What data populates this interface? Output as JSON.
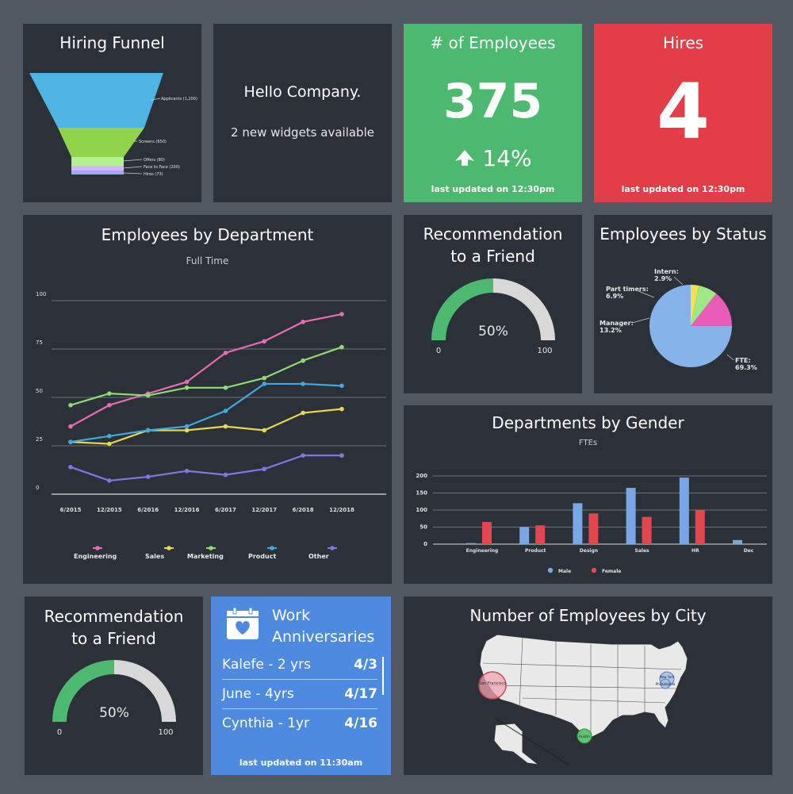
{
  "hiring_funnel": {
    "title": "Hiring Funnel",
    "stages": [
      {
        "label": "Applicants (1,200)",
        "color": "#4fb3e3"
      },
      {
        "label": "Screens (650)",
        "color": "#8fd44a"
      },
      {
        "label": "Offers (80)",
        "color": "#b5ef95"
      },
      {
        "label": "Face to Face (200)",
        "color": "#d6b5f7"
      },
      {
        "label": "Hires (73)",
        "color": "#9fa6f7"
      }
    ]
  },
  "hello": {
    "title": "Hello Company.",
    "subtitle": "2 new widgets available"
  },
  "employees": {
    "title": "# of Employees",
    "value": "375",
    "change": "14%",
    "arrow_icon": "arrow-up-icon",
    "updated": "last updated on 12:30pm",
    "color": "#4cb870"
  },
  "hires": {
    "title": "Hires",
    "value": "4",
    "updated": "last updated on 12:30pm",
    "color": "#e33d48"
  },
  "employees_by_department": {
    "title": "Employees by Department",
    "subtitle": "Full Time",
    "chart_data": {
      "type": "line",
      "x": [
        "6/2015",
        "12/2015",
        "6/2016",
        "12/2016",
        "6/2017",
        "12/2017",
        "6/2018",
        "12/2018"
      ],
      "yticks": [
        "0",
        "25",
        "50",
        "75",
        "100"
      ],
      "ylim": [
        0,
        100
      ],
      "series": [
        {
          "name": "Engineering",
          "color": "#e86bb5",
          "values": [
            35,
            46,
            52,
            58,
            73,
            79,
            89,
            93
          ]
        },
        {
          "name": "Sales",
          "color": "#e7d84e",
          "values": [
            27,
            26,
            33,
            33,
            35,
            33,
            42,
            44
          ]
        },
        {
          "name": "Marketing",
          "color": "#8fdc74",
          "values": [
            46,
            52,
            51,
            55,
            55,
            60,
            69,
            76
          ]
        },
        {
          "name": "Product",
          "color": "#3fa9e0",
          "values": [
            27,
            30,
            33,
            35,
            43,
            57,
            57,
            56
          ]
        },
        {
          "name": "Other",
          "color": "#7f78e0",
          "values": [
            14,
            7,
            9,
            12,
            10,
            13,
            20,
            20
          ]
        }
      ],
      "grid": true,
      "legend": "bottom"
    }
  },
  "recommendation_1": {
    "title_line1": "Recommendation",
    "title_line2": "to a Friend",
    "value_text": "50%",
    "value": 50,
    "min": "0",
    "max": "100"
  },
  "recommendation_2": {
    "title_line1": "Recommendation",
    "title_line2": "to a Friend",
    "value_text": "50%",
    "value": 50,
    "min": "0",
    "max": "100"
  },
  "employees_by_status": {
    "title": "Employees by Status",
    "chart_data": {
      "type": "pie",
      "slices": [
        {
          "name": "FTE:",
          "value": 69.3,
          "value_text": "69.3%",
          "color": "#86b4ea"
        },
        {
          "name": "Manager:",
          "value": 13.2,
          "value_text": "13.2%",
          "color": "#e85cb8"
        },
        {
          "name": "Part timers:",
          "value": 6.9,
          "value_text": "6.9%",
          "color": "#9fe88a"
        },
        {
          "name": "Intern:",
          "value": 2.9,
          "value_text": "2.9%",
          "color": "#f4e34e"
        }
      ]
    }
  },
  "departments_by_gender": {
    "title": "Departments by Gender",
    "subtitle": "FTEs",
    "chart_data": {
      "type": "bar",
      "categories": [
        "Engineering",
        "Product",
        "Design",
        "Sales",
        "HR",
        "Dec"
      ],
      "yticks": [
        "0",
        "50",
        "100",
        "150",
        "200"
      ],
      "ylim": [
        0,
        200
      ],
      "series": [
        {
          "name": "Male",
          "color": "#79a7e6",
          "values": [
            3,
            50,
            120,
            165,
            195,
            12
          ]
        },
        {
          "name": "Female",
          "color": "#e4454f",
          "values": [
            65,
            55,
            90,
            80,
            100,
            0
          ]
        }
      ],
      "grid": true,
      "legend": "bottom"
    }
  },
  "work_anniversaries": {
    "title_line1": "Work",
    "title_line2": "Anniversaries",
    "icon": "calendar-heart-icon",
    "items": [
      {
        "name": "Kalefe - 2 yrs",
        "date": "4/3"
      },
      {
        "name": "June - 4yrs",
        "date": "4/17"
      },
      {
        "name": "Cynthia - 1yr",
        "date": "4/16"
      }
    ],
    "updated": "last updated on 11:30am",
    "color": "#4e8be0"
  },
  "employees_by_city": {
    "title": "Number of Employees by City",
    "cities": [
      {
        "name": "San Francisco",
        "color": "#f0a6b3"
      },
      {
        "name": "New York",
        "color": "#a6bde8"
      },
      {
        "name": "Philadelphia",
        "color": "#a6bde8"
      },
      {
        "name": "Austin",
        "color": "#5fc46f"
      }
    ]
  }
}
